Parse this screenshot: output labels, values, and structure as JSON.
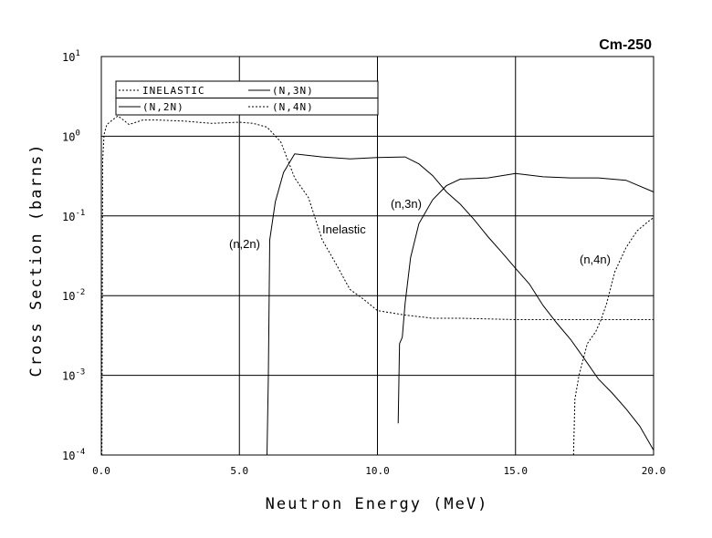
{
  "chart_data": {
    "type": "line",
    "title": "Cm-250",
    "xlabel": "Neutron Energy (MeV)",
    "ylabel": "Cross Section (barns)",
    "xlim": [
      0,
      20
    ],
    "ylim": [
      0.0001,
      10
    ],
    "yscale": "log",
    "grid": true,
    "x_ticks": [
      "0.0",
      "5.0",
      "10.0",
      "15.0",
      "20.0"
    ],
    "y_ticks": [
      {
        "base": "10",
        "exp": "1"
      },
      {
        "base": "10",
        "exp": "0"
      },
      {
        "base": "10",
        "exp": "-1"
      },
      {
        "base": "10",
        "exp": "-2"
      },
      {
        "base": "10",
        "exp": "-3"
      },
      {
        "base": "10",
        "exp": "-4"
      }
    ],
    "legend": {
      "position": "top-left",
      "entries": [
        "INELASTIC",
        "(N,3N)",
        "(N,2N)",
        "(N,4N)"
      ]
    },
    "annotations": [
      "(n,2n)",
      "Inelastic",
      "(n,3n)",
      "(n,4n)"
    ],
    "series": [
      {
        "name": "INELASTIC",
        "dash": "dashed",
        "points": [
          [
            0.02,
            0.0001
          ],
          [
            0.05,
            0.5
          ],
          [
            0.1,
            1.05
          ],
          [
            0.2,
            1.4
          ],
          [
            0.4,
            1.6
          ],
          [
            0.6,
            1.8
          ],
          [
            0.8,
            1.6
          ],
          [
            1.0,
            1.4
          ],
          [
            1.5,
            1.6
          ],
          [
            2.0,
            1.6
          ],
          [
            3.0,
            1.55
          ],
          [
            4.0,
            1.45
          ],
          [
            5.0,
            1.5
          ],
          [
            5.5,
            1.45
          ],
          [
            6.0,
            1.3
          ],
          [
            6.5,
            0.85
          ],
          [
            7.0,
            0.3
          ],
          [
            7.5,
            0.17
          ],
          [
            8.0,
            0.05
          ],
          [
            8.5,
            0.025
          ],
          [
            9.0,
            0.012
          ],
          [
            9.5,
            0.009
          ],
          [
            10.0,
            0.0065
          ],
          [
            11.0,
            0.0057
          ],
          [
            12.0,
            0.0052
          ],
          [
            13.0,
            0.0052
          ],
          [
            15.0,
            0.005
          ],
          [
            18.0,
            0.005
          ],
          [
            20.0,
            0.005
          ]
        ]
      },
      {
        "name": "(N,2N)",
        "dash": "solid",
        "points": [
          [
            6.0,
            0.0001
          ],
          [
            6.05,
            0.001
          ],
          [
            6.1,
            0.05
          ],
          [
            6.3,
            0.15
          ],
          [
            6.6,
            0.35
          ],
          [
            7.0,
            0.6
          ],
          [
            8.0,
            0.55
          ],
          [
            9.0,
            0.52
          ],
          [
            10.0,
            0.54
          ],
          [
            11.0,
            0.55
          ],
          [
            11.5,
            0.45
          ],
          [
            12.0,
            0.32
          ],
          [
            12.5,
            0.2
          ],
          [
            13.0,
            0.14
          ],
          [
            13.5,
            0.09
          ],
          [
            14.0,
            0.055
          ],
          [
            14.5,
            0.035
          ],
          [
            15.0,
            0.022
          ],
          [
            15.5,
            0.014
          ],
          [
            16.0,
            0.0075
          ],
          [
            16.5,
            0.0045
          ],
          [
            17.0,
            0.0028
          ],
          [
            17.5,
            0.0016
          ],
          [
            18.0,
            0.0009
          ],
          [
            18.5,
            0.0006
          ],
          [
            19.0,
            0.00038
          ],
          [
            19.5,
            0.00023
          ],
          [
            20.0,
            0.000115
          ]
        ]
      },
      {
        "name": "(N,3N)",
        "dash": "solid",
        "points": [
          [
            10.75,
            0.00025
          ],
          [
            10.8,
            0.0025
          ],
          [
            10.9,
            0.003
          ],
          [
            11.0,
            0.008
          ],
          [
            11.2,
            0.03
          ],
          [
            11.5,
            0.08
          ],
          [
            12.0,
            0.16
          ],
          [
            12.5,
            0.24
          ],
          [
            13.0,
            0.29
          ],
          [
            14.0,
            0.3
          ],
          [
            15.0,
            0.34
          ],
          [
            16.0,
            0.31
          ],
          [
            17.0,
            0.3
          ],
          [
            18.0,
            0.3
          ],
          [
            19.0,
            0.28
          ],
          [
            20.0,
            0.2
          ]
        ]
      },
      {
        "name": "(N,4N)",
        "dash": "dashed",
        "points": [
          [
            17.1,
            0.0001
          ],
          [
            17.15,
            0.0005
          ],
          [
            17.3,
            0.001
          ],
          [
            17.6,
            0.0025
          ],
          [
            17.9,
            0.0035
          ],
          [
            18.1,
            0.005
          ],
          [
            18.3,
            0.008
          ],
          [
            18.6,
            0.02
          ],
          [
            19.0,
            0.04
          ],
          [
            19.4,
            0.065
          ],
          [
            19.8,
            0.085
          ],
          [
            20.0,
            0.095
          ]
        ]
      }
    ]
  }
}
